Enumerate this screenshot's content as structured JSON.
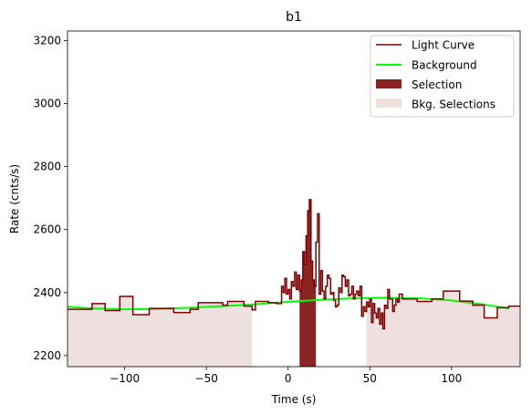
{
  "chart_data": {
    "type": "line",
    "title": "b1",
    "xlabel": "Time (s)",
    "ylabel": "Rate (cnts/s)",
    "xlim": [
      -135,
      142
    ],
    "ylim": [
      2165,
      3230
    ],
    "xticks": [
      -100,
      -50,
      0,
      50,
      100
    ],
    "yticks": [
      2200,
      2400,
      2600,
      2800,
      3000,
      3200
    ],
    "grid": false,
    "legend_position": "top-right",
    "legend": [
      "Light Curve",
      "Background",
      "Selection",
      "Bkg. Selections"
    ],
    "colors": {
      "light_curve": "#800000",
      "background": "#00ff00",
      "selection": "#8b2323",
      "bkg_selection": "#efe0e0"
    },
    "light_curve": {
      "name": "Light Curve",
      "steps": [
        [
          -135,
          2347
        ],
        [
          -120,
          2365
        ],
        [
          -112,
          2343
        ],
        [
          -103,
          2388
        ],
        [
          -95,
          2330
        ],
        [
          -85,
          2350
        ],
        [
          -70,
          2337
        ],
        [
          -60,
          2347
        ],
        [
          -55,
          2368
        ],
        [
          -40,
          2360
        ],
        [
          -37,
          2372
        ],
        [
          -27,
          2357
        ],
        [
          -22,
          2345
        ],
        [
          -20,
          2372
        ],
        [
          -12,
          2368
        ],
        [
          -7,
          2365
        ],
        [
          -4,
          2420
        ],
        [
          -3,
          2400
        ],
        [
          -2,
          2445
        ],
        [
          -1,
          2395
        ],
        [
          0,
          2410
        ],
        [
          1,
          2380
        ],
        [
          2,
          2435
        ],
        [
          3,
          2420
        ],
        [
          4,
          2465
        ],
        [
          5,
          2410
        ],
        [
          6,
          2455
        ],
        [
          7,
          2405
        ],
        [
          8,
          2440
        ],
        [
          9,
          2530
        ],
        [
          10,
          2490
        ],
        [
          11,
          2580
        ],
        [
          12,
          2660
        ],
        [
          13,
          2695
        ],
        [
          14,
          2500
        ],
        [
          15,
          2440
        ],
        [
          16,
          2420
        ],
        [
          17,
          2560
        ],
        [
          18,
          2650
        ],
        [
          19,
          2395
        ],
        [
          20,
          2470
        ],
        [
          21,
          2405
        ],
        [
          22,
          2380
        ],
        [
          23,
          2420
        ],
        [
          24,
          2455
        ],
        [
          25,
          2445
        ],
        [
          26,
          2395
        ],
        [
          27,
          2400
        ],
        [
          28,
          2375
        ],
        [
          29,
          2355
        ],
        [
          30,
          2360
        ],
        [
          31,
          2415
        ],
        [
          32,
          2400
        ],
        [
          33,
          2455
        ],
        [
          34,
          2450
        ],
        [
          35,
          2420
        ],
        [
          36,
          2440
        ],
        [
          37,
          2390
        ],
        [
          38,
          2395
        ],
        [
          39,
          2420
        ],
        [
          40,
          2380
        ],
        [
          41,
          2395
        ],
        [
          42,
          2405
        ],
        [
          43,
          2390
        ],
        [
          44,
          2420
        ],
        [
          45,
          2325
        ],
        [
          46,
          2355
        ],
        [
          47,
          2340
        ],
        [
          48,
          2370
        ],
        [
          49,
          2355
        ],
        [
          50,
          2380
        ],
        [
          51,
          2305
        ],
        [
          52,
          2365
        ],
        [
          53,
          2335
        ],
        [
          54,
          2320
        ],
        [
          55,
          2350
        ],
        [
          56,
          2300
        ],
        [
          57,
          2335
        ],
        [
          58,
          2285
        ],
        [
          59,
          2360
        ],
        [
          60,
          2350
        ],
        [
          61,
          2410
        ],
        [
          62,
          2380
        ],
        [
          63,
          2380
        ],
        [
          64,
          2340
        ],
        [
          65,
          2360
        ],
        [
          66,
          2380
        ],
        [
          67,
          2370
        ],
        [
          68,
          2395
        ],
        [
          70,
          2380
        ],
        [
          79,
          2372
        ],
        [
          88,
          2380
        ],
        [
          95,
          2405
        ],
        [
          105,
          2373
        ],
        [
          113,
          2360
        ],
        [
          120,
          2320
        ],
        [
          128,
          2352
        ],
        [
          135,
          2357
        ],
        [
          142,
          2357
        ]
      ]
    },
    "background": {
      "name": "Background",
      "x": [
        -135,
        -120,
        -100,
        -80,
        -60,
        -40,
        -20,
        0,
        20,
        40,
        60,
        80,
        100,
        120,
        135
      ],
      "y": [
        2355,
        2350,
        2347,
        2348,
        2352,
        2357,
        2363,
        2371,
        2377,
        2382,
        2384,
        2382,
        2375,
        2362,
        2350
      ]
    },
    "selection": {
      "name": "Selection",
      "x_range": [
        7,
        17
      ]
    },
    "bkg_selections": [
      {
        "name": "Bkg. Selections",
        "x_range": [
          -135,
          -22
        ]
      },
      {
        "x_range": [
          48,
          142
        ]
      }
    ]
  }
}
